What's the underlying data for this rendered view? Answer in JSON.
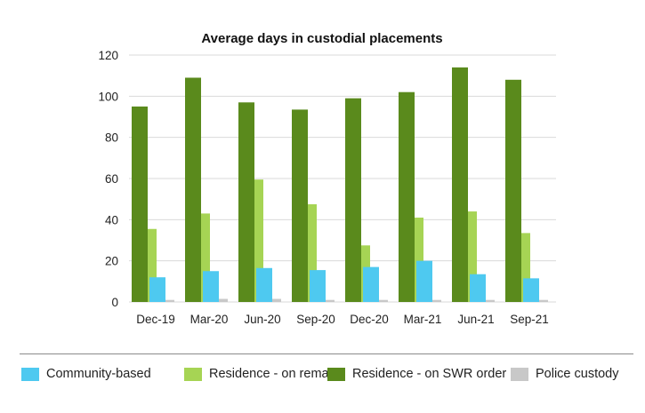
{
  "chart_data": {
    "type": "bar",
    "title": "Average days in custodial placements",
    "categories": [
      "Dec-19",
      "Mar-20",
      "Jun-20",
      "Sep-20",
      "Dec-20",
      "Mar-21",
      "Jun-21",
      "Sep-21"
    ],
    "ylim": [
      0,
      120
    ],
    "yticks": [
      0,
      20,
      40,
      60,
      80,
      100,
      120
    ],
    "ytick_labels": [
      "0",
      "20",
      "40",
      "60",
      "80",
      "100",
      "120"
    ],
    "grid": true,
    "legend_position": "bottom",
    "draw_order": [
      3,
      1,
      0,
      2
    ],
    "series": [
      {
        "name": "Community-based",
        "color": "#4ec9f0",
        "values": [
          12,
          15,
          16.5,
          15.5,
          17,
          20,
          13.5,
          11.5
        ]
      },
      {
        "name": "Residence - on remand",
        "color": "#a6d454",
        "values": [
          35.5,
          43,
          59.5,
          47.5,
          27.5,
          41,
          44,
          33.5
        ]
      },
      {
        "name": "Residence - on SWR order",
        "color": "#5a8a1c",
        "values": [
          95,
          109,
          97,
          93.5,
          99,
          102,
          114,
          108
        ]
      },
      {
        "name": "Police custody",
        "color": "#c8c8c8",
        "values": [
          1,
          1.5,
          1.5,
          1,
          1,
          1,
          1,
          1
        ]
      }
    ]
  }
}
